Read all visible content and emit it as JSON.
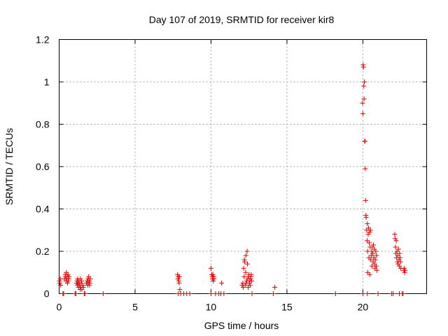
{
  "chart_data": {
    "type": "scatter",
    "title": "Day 107 of 2019, SRMTID for receiver kir8",
    "xlabel": "GPS time / hours",
    "ylabel": "SRMTID / TECUs",
    "xlim": [
      0,
      24.2
    ],
    "ylim": [
      0,
      1.2
    ],
    "x_ticks": [
      0,
      5,
      10,
      15,
      20
    ],
    "x_tick_labels": [
      "0",
      "5",
      "10",
      "15",
      "20"
    ],
    "y_ticks": [
      0,
      0.2,
      0.4,
      0.6,
      0.8,
      1.0,
      1.2
    ],
    "y_tick_labels": [
      "0",
      "0.2",
      "0.4",
      "0.6",
      "0.8",
      "1",
      "1.2"
    ],
    "grid": true,
    "marker": "plus",
    "color": "#dd0000",
    "series": [
      {
        "name": "SRMTID",
        "points": [
          [
            0.02,
            0.06
          ],
          [
            0.05,
            0.05
          ],
          [
            0.08,
            0.07
          ],
          [
            0.1,
            0.04
          ],
          [
            0.25,
            0.0
          ],
          [
            0.3,
            0.0
          ],
          [
            0.35,
            0.07
          ],
          [
            0.4,
            0.09
          ],
          [
            0.42,
            0.08
          ],
          [
            0.45,
            0.06
          ],
          [
            0.48,
            0.1
          ],
          [
            0.5,
            0.07
          ],
          [
            0.52,
            0.08
          ],
          [
            0.55,
            0.05
          ],
          [
            0.58,
            0.09
          ],
          [
            0.6,
            0.06
          ],
          [
            0.62,
            0.07
          ],
          [
            0.65,
            0.08
          ],
          [
            1.05,
            0.0
          ],
          [
            1.1,
            0.0
          ],
          [
            1.15,
            0.05
          ],
          [
            1.18,
            0.06
          ],
          [
            1.2,
            0.04
          ],
          [
            1.22,
            0.07
          ],
          [
            1.25,
            0.05
          ],
          [
            1.28,
            0.03
          ],
          [
            1.3,
            0.06
          ],
          [
            1.32,
            0.05
          ],
          [
            1.35,
            0.04
          ],
          [
            1.38,
            0.02
          ],
          [
            1.4,
            0.07
          ],
          [
            1.42,
            0.03
          ],
          [
            1.45,
            0.05
          ],
          [
            1.48,
            0.06
          ],
          [
            1.5,
            0.02
          ],
          [
            1.55,
            0.04
          ],
          [
            1.6,
            0.03
          ],
          [
            1.65,
            0.0
          ],
          [
            1.7,
            0.0
          ],
          [
            1.8,
            0.05
          ],
          [
            1.85,
            0.06
          ],
          [
            1.88,
            0.04
          ],
          [
            1.9,
            0.07
          ],
          [
            1.92,
            0.05
          ],
          [
            1.95,
            0.08
          ],
          [
            1.98,
            0.06
          ],
          [
            2.0,
            0.04
          ],
          [
            2.02,
            0.05
          ],
          [
            2.05,
            0.07
          ],
          [
            2.9,
            0.0
          ],
          [
            7.8,
            0.09
          ],
          [
            7.82,
            0.07
          ],
          [
            7.85,
            0.08
          ],
          [
            7.88,
            0.06
          ],
          [
            7.9,
            0.05
          ],
          [
            7.92,
            0.08
          ],
          [
            7.95,
            0.02
          ],
          [
            7.85,
            0.0
          ],
          [
            8.0,
            0.0
          ],
          [
            8.2,
            0.0
          ],
          [
            8.4,
            0.0
          ],
          [
            8.6,
            0.0
          ],
          [
            10.0,
            0.12
          ],
          [
            10.05,
            0.09
          ],
          [
            10.08,
            0.08
          ],
          [
            10.1,
            0.07
          ],
          [
            10.12,
            0.09
          ],
          [
            10.15,
            0.06
          ],
          [
            10.18,
            0.08
          ],
          [
            10.2,
            0.07
          ],
          [
            10.0,
            0.0
          ],
          [
            10.3,
            0.0
          ],
          [
            10.5,
            0.0
          ],
          [
            10.7,
            0.05
          ],
          [
            10.65,
            0.0
          ],
          [
            10.85,
            0.0
          ],
          [
            12.05,
            0.04
          ],
          [
            12.1,
            0.05
          ],
          [
            12.12,
            0.03
          ],
          [
            12.15,
            0.12
          ],
          [
            12.18,
            0.08
          ],
          [
            12.2,
            0.16
          ],
          [
            12.22,
            0.15
          ],
          [
            12.25,
            0.04
          ],
          [
            12.28,
            0.1
          ],
          [
            12.3,
            0.18
          ],
          [
            12.32,
            0.05
          ],
          [
            12.35,
            0.06
          ],
          [
            12.38,
            0.2
          ],
          [
            12.4,
            0.14
          ],
          [
            12.42,
            0.07
          ],
          [
            12.45,
            0.03
          ],
          [
            12.48,
            0.08
          ],
          [
            12.5,
            0.09
          ],
          [
            12.52,
            0.05
          ],
          [
            12.55,
            0.06
          ],
          [
            12.58,
            0.04
          ],
          [
            12.6,
            0.07
          ],
          [
            12.62,
            0.08
          ],
          [
            12.65,
            0.09
          ],
          [
            12.68,
            0.06
          ],
          [
            12.7,
            0.0
          ],
          [
            14.2,
            0.03
          ],
          [
            14.1,
            0.0
          ],
          [
            18.2,
            0.0
          ],
          [
            19.98,
            0.9
          ],
          [
            20.0,
            0.85
          ],
          [
            20.02,
            1.08
          ],
          [
            20.04,
            1.07
          ],
          [
            20.06,
            0.98
          ],
          [
            20.08,
            0.92
          ],
          [
            20.1,
            1.0
          ],
          [
            20.12,
            0.72
          ],
          [
            20.14,
            0.72
          ],
          [
            20.16,
            0.59
          ],
          [
            20.18,
            0.44
          ],
          [
            20.2,
            0.37
          ],
          [
            20.22,
            0.36
          ],
          [
            20.25,
            0.3
          ],
          [
            20.28,
            0.25
          ],
          [
            20.3,
            0.33
          ],
          [
            20.32,
            0.2
          ],
          [
            20.35,
            0.28
          ],
          [
            20.38,
            0.31
          ],
          [
            20.4,
            0.17
          ],
          [
            20.42,
            0.24
          ],
          [
            20.45,
            0.29
          ],
          [
            20.48,
            0.22
          ],
          [
            20.5,
            0.3
          ],
          [
            20.52,
            0.16
          ],
          [
            20.55,
            0.18
          ],
          [
            20.58,
            0.2
          ],
          [
            20.6,
            0.13
          ],
          [
            20.62,
            0.22
          ],
          [
            20.65,
            0.19
          ],
          [
            20.68,
            0.15
          ],
          [
            20.7,
            0.23
          ],
          [
            20.72,
            0.17
          ],
          [
            20.75,
            0.21
          ],
          [
            20.78,
            0.14
          ],
          [
            20.8,
            0.12
          ],
          [
            20.82,
            0.16
          ],
          [
            20.85,
            0.2
          ],
          [
            20.88,
            0.13
          ],
          [
            20.9,
            0.18
          ],
          [
            20.92,
            0.11
          ],
          [
            20.32,
            0.1
          ],
          [
            20.45,
            0.09
          ],
          [
            20.0,
            0.0
          ],
          [
            20.3,
            0.0
          ],
          [
            21.0,
            0.0
          ],
          [
            21.9,
            0.0
          ],
          [
            22.0,
            0.0
          ],
          [
            22.1,
            0.28
          ],
          [
            22.12,
            0.26
          ],
          [
            22.15,
            0.22
          ],
          [
            22.18,
            0.19
          ],
          [
            22.2,
            0.25
          ],
          [
            22.22,
            0.17
          ],
          [
            22.25,
            0.2
          ],
          [
            22.28,
            0.15
          ],
          [
            22.3,
            0.18
          ],
          [
            22.32,
            0.14
          ],
          [
            22.35,
            0.21
          ],
          [
            22.38,
            0.16
          ],
          [
            22.4,
            0.13
          ],
          [
            22.42,
            0.19
          ],
          [
            22.45,
            0.17
          ],
          [
            22.48,
            0.15
          ],
          [
            22.5,
            0.12
          ],
          [
            22.4,
            0.0
          ],
          [
            22.6,
            0.0
          ],
          [
            22.65,
            0.0
          ],
          [
            22.7,
            0.11
          ],
          [
            22.72,
            0.12
          ],
          [
            22.75,
            0.1
          ],
          [
            22.78,
            0.11
          ]
        ]
      }
    ]
  }
}
